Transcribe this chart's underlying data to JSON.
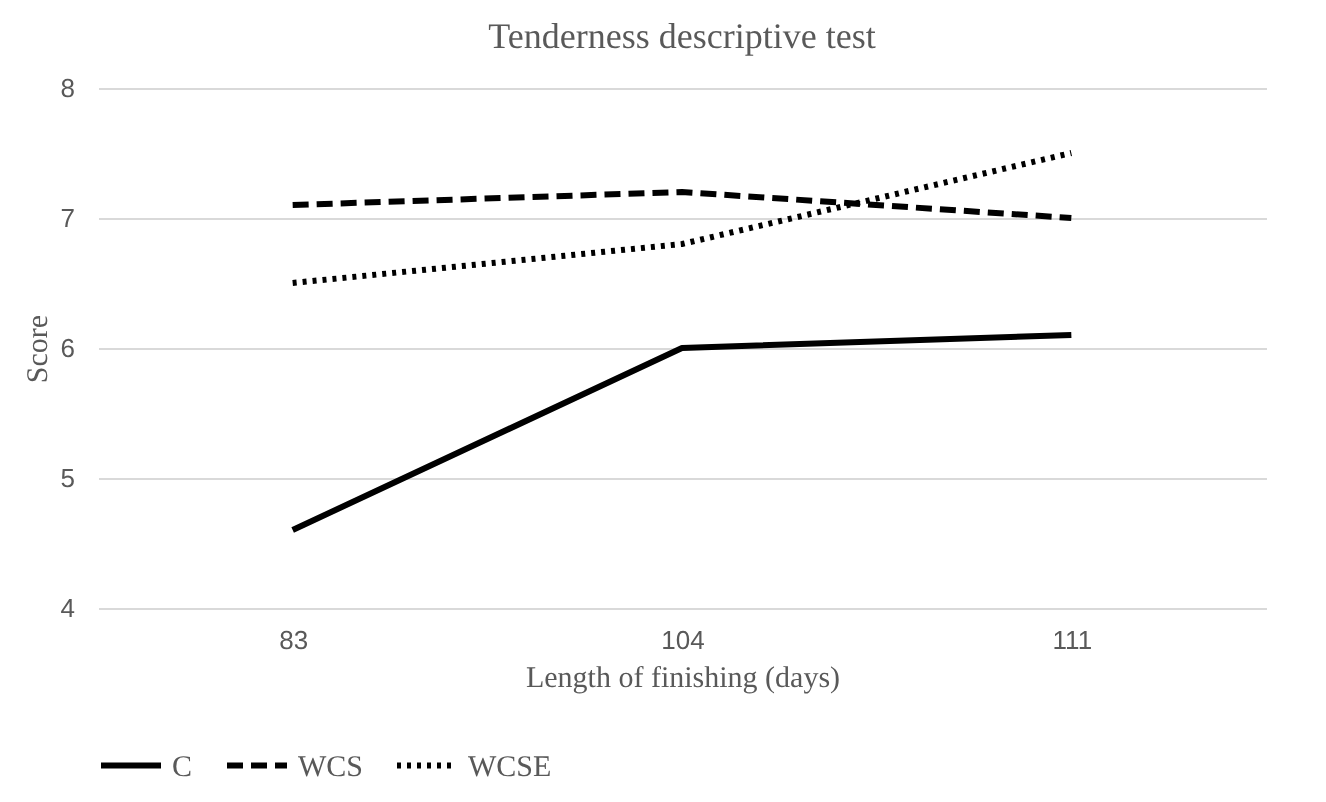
{
  "chart_data": {
    "type": "line",
    "title": "Tenderness descriptive test",
    "xlabel": "Length of finishing (days)",
    "ylabel": "Score",
    "categories": [
      "83",
      "104",
      "111"
    ],
    "series": [
      {
        "name": "C",
        "color": "#000000",
        "line_style": "solid",
        "values": [
          4.6,
          6.0,
          6.1
        ]
      },
      {
        "name": "WCS",
        "color": "#000000",
        "line_style": "dashed",
        "values": [
          7.1,
          7.2,
          7.0
        ]
      },
      {
        "name": "WCSE",
        "color": "#000000",
        "line_style": "dotted",
        "values": [
          6.5,
          6.8,
          7.5
        ]
      }
    ],
    "ylim": [
      4,
      8
    ],
    "yticks": [
      4,
      5,
      6,
      7,
      8
    ],
    "grid": "y",
    "legend": "bottom",
    "marker": "none"
  }
}
